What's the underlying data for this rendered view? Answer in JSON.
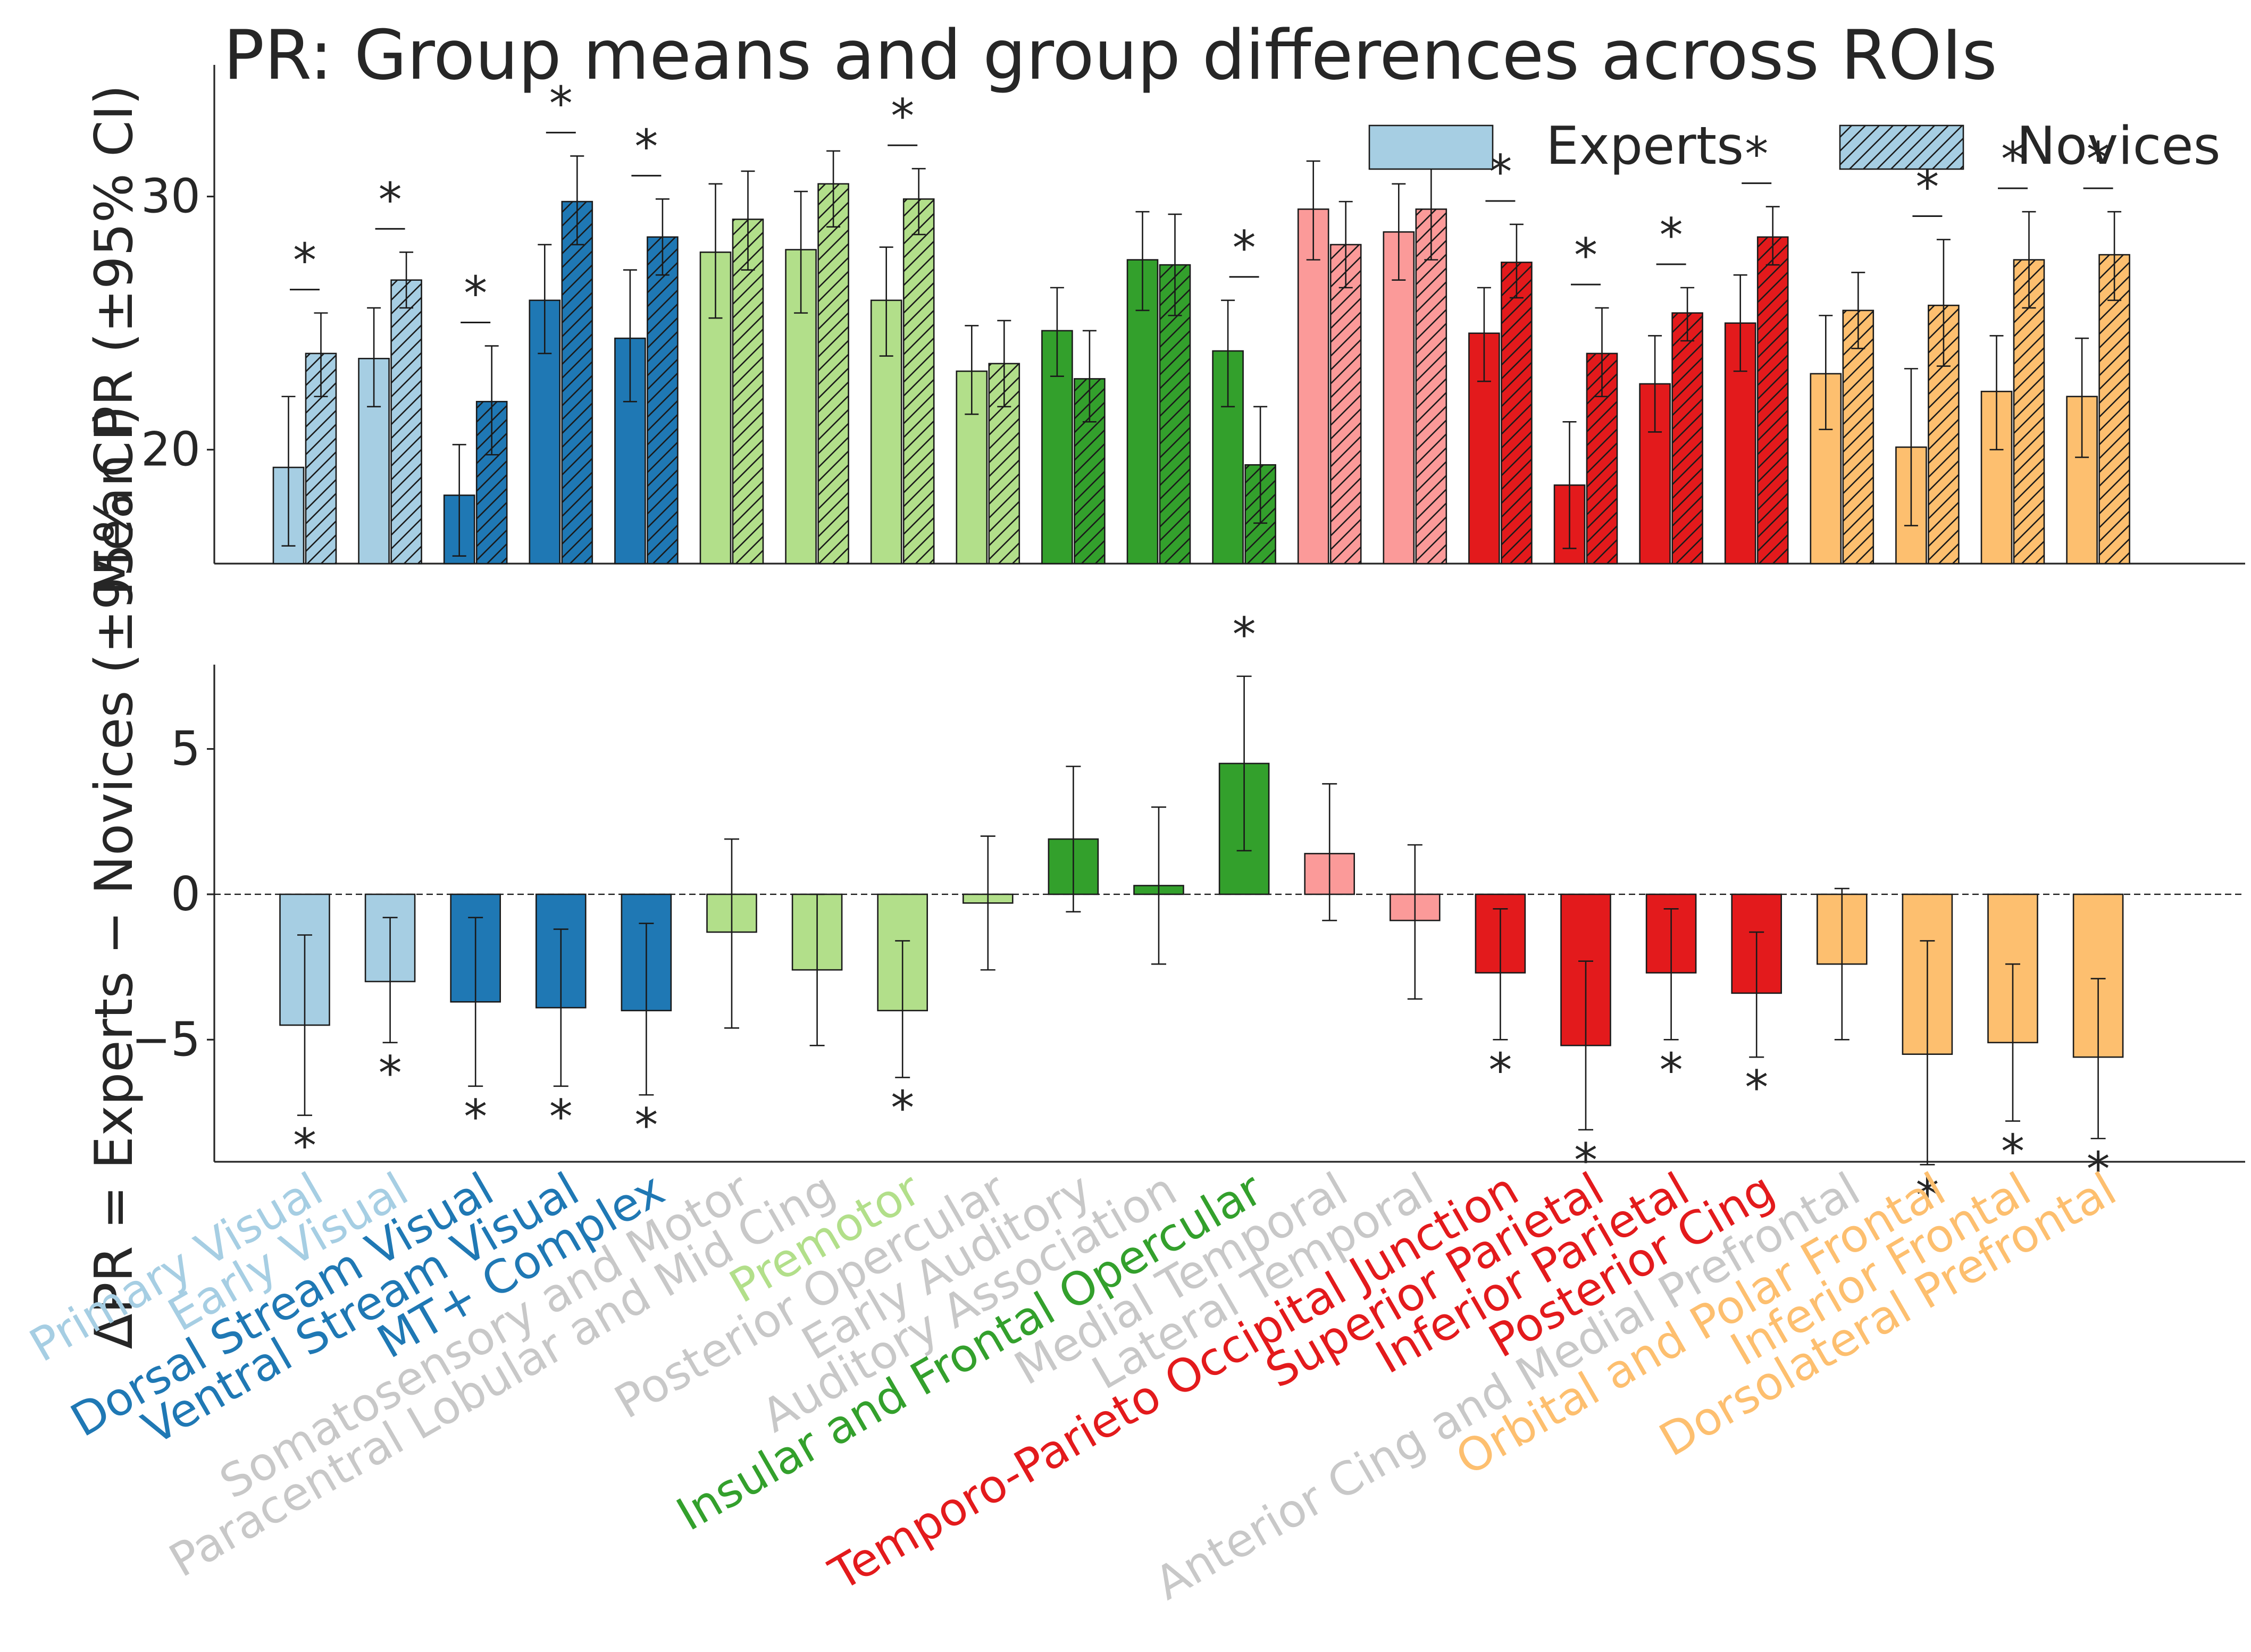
{
  "chart_data": [
    {
      "type": "bar",
      "title": "PR: Group means and group differences across ROIs",
      "ylabel": "Mean PR (±95% CI)",
      "ylim": [
        15.5,
        35.2
      ],
      "yticks": [
        20,
        30
      ],
      "grid": false,
      "legend_position": "top-right",
      "categories": [
        "Primary Visual",
        "Early Visual",
        "Dorsal Stream Visual",
        "Ventral Stream Visual",
        "MT+ Complex",
        "Somatosensory and Motor",
        "Paracentral Lobular and Mid Cing",
        "Premotor",
        "Posterior Opercular",
        "Early Auditory",
        "Auditory Association",
        "Insular and Frontal Opercular",
        "Medial Temporal",
        "Lateral Temporal",
        "Temporo-Parieto Occipital Junction",
        "Superior Parietal",
        "Inferior Parietal",
        "Posterior Cing",
        "Anterior Cing and Medial Prefrontal",
        "Orbital and Polar Frontal",
        "Inferior Frontal",
        "Dorsolateral Prefrontal"
      ],
      "series": [
        {
          "name": "Experts",
          "hatch": false,
          "values": [
            19.3,
            23.6,
            18.2,
            25.9,
            24.4,
            27.8,
            27.9,
            25.9,
            23.1,
            24.7,
            27.5,
            23.9,
            29.5,
            28.6,
            24.6,
            18.6,
            22.6,
            25.0,
            23.0,
            20.1,
            22.3,
            22.1
          ],
          "ci_low": [
            16.2,
            21.7,
            15.8,
            23.8,
            21.9,
            25.2,
            25.4,
            23.7,
            21.4,
            22.9,
            25.5,
            21.7,
            27.5,
            26.7,
            22.7,
            16.1,
            20.7,
            23.1,
            20.8,
            17.0,
            20.0,
            19.7
          ],
          "ci_high": [
            22.1,
            25.6,
            20.2,
            28.1,
            27.1,
            30.5,
            30.2,
            28.0,
            24.9,
            26.4,
            29.4,
            25.9,
            31.4,
            30.5,
            26.4,
            21.1,
            24.5,
            26.9,
            25.3,
            23.2,
            24.5,
            24.4
          ]
        },
        {
          "name": "Novices",
          "hatch": true,
          "values": [
            23.8,
            26.7,
            21.9,
            29.8,
            28.4,
            29.1,
            30.5,
            29.9,
            23.4,
            22.8,
            27.3,
            19.4,
            28.1,
            29.5,
            27.4,
            23.8,
            25.4,
            28.4,
            25.5,
            25.7,
            27.5,
            27.7
          ],
          "ci_low": [
            22.1,
            25.6,
            19.8,
            28.1,
            26.9,
            27.1,
            28.8,
            28.5,
            21.7,
            21.1,
            25.3,
            17.1,
            26.4,
            27.5,
            26.0,
            22.1,
            24.3,
            27.3,
            24.0,
            23.3,
            25.6,
            25.9
          ],
          "ci_high": [
            25.4,
            27.8,
            24.1,
            31.6,
            29.9,
            31.0,
            31.8,
            31.1,
            25.1,
            24.7,
            29.3,
            21.7,
            29.8,
            31.5,
            28.9,
            25.6,
            26.4,
            29.6,
            27.0,
            28.3,
            29.4,
            29.4
          ]
        }
      ],
      "significance_marker": "*",
      "significant_rois": [
        "Primary Visual",
        "Early Visual",
        "Dorsal Stream Visual",
        "Ventral Stream Visual",
        "MT+ Complex",
        "Premotor",
        "Insular and Frontal Opercular",
        "Temporo-Parieto Occipital Junction",
        "Superior Parietal",
        "Inferior Parietal",
        "Posterior Cing",
        "Orbital and Polar Frontal",
        "Inferior Frontal",
        "Dorsolateral Prefrontal"
      ]
    },
    {
      "type": "bar",
      "ylabel": "ΔPR = Experts − Novices (±95% CI)",
      "ylim": [
        -9.2,
        7.9
      ],
      "yticks": [
        -5,
        0,
        5
      ],
      "grid": false,
      "zero_line": "dashed",
      "categories": [
        "Primary Visual",
        "Early Visual",
        "Dorsal Stream Visual",
        "Ventral Stream Visual",
        "MT+ Complex",
        "Somatosensory and Motor",
        "Paracentral Lobular and Mid Cing",
        "Premotor",
        "Posterior Opercular",
        "Early Auditory",
        "Auditory Association",
        "Insular and Frontal Opercular",
        "Medial Temporal",
        "Lateral Temporal",
        "Temporo-Parieto Occipital Junction",
        "Superior Parietal",
        "Inferior Parietal",
        "Posterior Cing",
        "Anterior Cing and Medial Prefrontal",
        "Orbital and Polar Frontal",
        "Inferior Frontal",
        "Dorsolateral Prefrontal"
      ],
      "values": [
        -4.5,
        -3.0,
        -3.7,
        -3.9,
        -4.0,
        -1.3,
        -2.6,
        -4.0,
        -0.3,
        1.9,
        0.3,
        4.5,
        1.4,
        -0.9,
        -2.7,
        -5.2,
        -2.7,
        -3.4,
        -2.4,
        -5.5,
        -5.1,
        -5.6
      ],
      "ci_low": [
        -7.6,
        -5.1,
        -6.6,
        -6.6,
        -6.9,
        -4.6,
        -5.2,
        -6.3,
        -2.6,
        -0.6,
        -2.4,
        1.5,
        -0.9,
        -3.6,
        -5.0,
        -8.1,
        -5.0,
        -5.6,
        -5.0,
        -9.3,
        -7.8,
        -8.4
      ],
      "ci_high": [
        -1.4,
        -0.8,
        -0.8,
        -1.2,
        -1.0,
        1.9,
        0.0,
        -1.6,
        2.0,
        4.4,
        3.0,
        7.5,
        3.8,
        1.7,
        -0.5,
        -2.3,
        -0.5,
        -1.3,
        0.2,
        -1.6,
        -2.4,
        -2.9
      ],
      "significance_marker": "*"
    }
  ],
  "legend": [
    {
      "label": "Experts",
      "hatch": false
    },
    {
      "label": "Novices",
      "hatch": true
    }
  ],
  "category_colors": [
    "#a6cee3",
    "#a6cee3",
    "#1f78b4",
    "#1f78b4",
    "#1f78b4",
    "#b2df8a",
    "#b2df8a",
    "#b2df8a",
    "#b2df8a",
    "#33a02c",
    "#33a02c",
    "#33a02c",
    "#fb9a99",
    "#fb9a99",
    "#e31a1c",
    "#e31a1c",
    "#e31a1c",
    "#e31a1c",
    "#fdbf6f",
    "#fdbf6f",
    "#fdbf6f",
    "#fdbf6f"
  ],
  "label_colors": [
    "#a6cee3",
    "#a6cee3",
    "#1f78b4",
    "#1f78b4",
    "#1f78b4",
    "#c8c8c8",
    "#c8c8c8",
    "#b2df8a",
    "#c8c8c8",
    "#c8c8c8",
    "#c8c8c8",
    "#33a02c",
    "#c8c8c8",
    "#c8c8c8",
    "#e31a1c",
    "#e31a1c",
    "#e31a1c",
    "#e31a1c",
    "#c8c8c8",
    "#fdbf6f",
    "#fdbf6f",
    "#fdbf6f"
  ],
  "accent_text_color": "#262626"
}
